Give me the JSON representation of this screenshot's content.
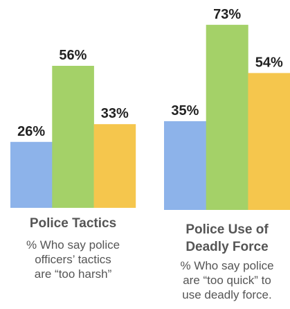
{
  "chart_data": [
    {
      "type": "bar",
      "title": "Police Tactics",
      "subtitle": [
        "% Who say police",
        "officers’ tactics",
        "are “too harsh”"
      ],
      "categories": [
        "",
        "",
        ""
      ],
      "values": [
        26,
        56,
        33
      ],
      "labels": [
        "26%",
        "56%",
        "33%"
      ],
      "colors": [
        "#8db3ea",
        "#a4d168",
        "#f5c64d"
      ],
      "ylim": [
        0,
        100
      ],
      "grid": false,
      "legend": "none"
    },
    {
      "type": "bar",
      "title": [
        "Police Use of",
        "Deadly Force"
      ],
      "subtitle": [
        "% Who say police",
        "are “too quick” to",
        "use deadly force."
      ],
      "categories": [
        "",
        "",
        ""
      ],
      "values": [
        35,
        73,
        54
      ],
      "labels": [
        "35%",
        "73%",
        "54%"
      ],
      "colors": [
        "#8db3ea",
        "#a4d168",
        "#f5c64d"
      ],
      "ylim": [
        0,
        100
      ],
      "grid": false,
      "legend": "none"
    }
  ]
}
